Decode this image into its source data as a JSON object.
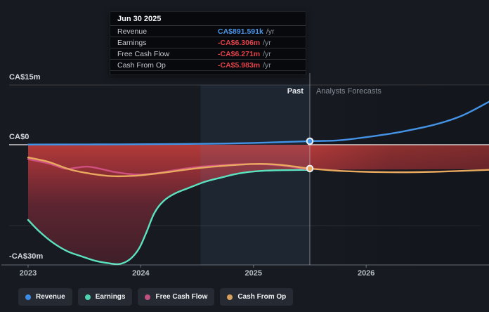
{
  "tooltip": {
    "date": "Jun 30 2025",
    "rows": [
      {
        "label": "Revenue",
        "value": "CA$891.591k",
        "suffix": "/yr",
        "value_color": "#4a96e8"
      },
      {
        "label": "Earnings",
        "value": "-CA$6.306m",
        "suffix": "/yr",
        "value_color": "#e24248"
      },
      {
        "label": "Free Cash Flow",
        "value": "-CA$6.271m",
        "suffix": "/yr",
        "value_color": "#e24248"
      },
      {
        "label": "Cash From Op",
        "value": "-CA$5.983m",
        "suffix": "/yr",
        "value_color": "#e24248"
      }
    ]
  },
  "chart": {
    "past_label": "Past",
    "forecast_label": "Analysts Forecasts"
  },
  "legend": [
    {
      "label": "Revenue",
      "color": "#3c8de8"
    },
    {
      "label": "Earnings",
      "color": "#4ed4b2"
    },
    {
      "label": "Free Cash Flow",
      "color": "#c0517e"
    },
    {
      "label": "Cash From Op",
      "color": "#d9a05c"
    }
  ],
  "colors": {
    "background": "#171a21",
    "grid_line": "rgba(255,255,255,0.16)",
    "faint_grid_line": "rgba(255,255,255,0.09)",
    "zero_line": "rgba(236,228,228,0.9)",
    "axis_line": "rgba(200,207,215,0.45)",
    "divider_line": "rgba(205,214,224,0.5)",
    "highlight_band": "rgba(96,144,205,0.10)",
    "forecast_shade": "rgba(10,12,17,0.30)",
    "marker_ring": "#edf0f3"
  },
  "chart_data": {
    "type": "line",
    "y_unit": "CA$ millions per year",
    "x_range": [
      2022.838,
      2027.09
    ],
    "y_range_m": [
      -30.2,
      16.95
    ],
    "divider_x": 2025.5,
    "divider_date": "Jun 30 2025",
    "highlight_band_x": [
      2024.53,
      2025.5
    ],
    "x_ticks": [
      2023,
      2024,
      2025,
      2026
    ],
    "y_gridlines": [
      {
        "value_m": 15,
        "label": "CA$15m",
        "line": true,
        "faint": false
      },
      {
        "value_m": 0,
        "label": "CA$0",
        "line": false,
        "faint": false
      },
      {
        "value_m": -20.3,
        "label": "",
        "line": true,
        "faint": true
      },
      {
        "value_m": -30,
        "label": "-CA$30m",
        "line": false,
        "faint": false
      }
    ],
    "area_gradient": [
      "#b23a38",
      "#8e2f35",
      "#5c2530",
      "#3f1f2a"
    ],
    "series": [
      {
        "name": "Revenue",
        "color": "#4493e6",
        "past": [
          [
            2023.0,
            0.05
          ],
          [
            2023.4,
            0.07
          ],
          [
            2023.8,
            0.1
          ],
          [
            2024.2,
            0.15
          ],
          [
            2024.6,
            0.25
          ],
          [
            2025.0,
            0.45
          ],
          [
            2025.5,
            0.892
          ]
        ],
        "forecast": [
          [
            2025.5,
            0.892
          ],
          [
            2025.75,
            1.1
          ],
          [
            2026.0,
            1.9
          ],
          [
            2026.3,
            3.2
          ],
          [
            2026.6,
            5.0
          ],
          [
            2026.85,
            7.3
          ],
          [
            2027.09,
            10.8
          ]
        ]
      },
      {
        "name": "Earnings",
        "color": "#5be3c0",
        "area_fill": true,
        "forecast_line_visible": false,
        "past": [
          [
            2023.0,
            -18.9
          ],
          [
            2023.1,
            -21.8
          ],
          [
            2023.22,
            -24.6
          ],
          [
            2023.35,
            -26.8
          ],
          [
            2023.48,
            -28.1
          ],
          [
            2023.6,
            -29.2
          ],
          [
            2023.72,
            -29.8
          ],
          [
            2023.8,
            -30.0
          ],
          [
            2023.87,
            -29.4
          ],
          [
            2023.93,
            -28.1
          ],
          [
            2023.99,
            -25.8
          ],
          [
            2024.05,
            -22.0
          ],
          [
            2024.12,
            -17.2
          ],
          [
            2024.2,
            -14.2
          ],
          [
            2024.3,
            -12.3
          ],
          [
            2024.43,
            -10.8
          ],
          [
            2024.57,
            -9.3
          ],
          [
            2024.72,
            -8.2
          ],
          [
            2024.87,
            -7.2
          ],
          [
            2025.05,
            -6.6
          ],
          [
            2025.25,
            -6.4
          ],
          [
            2025.5,
            -6.306
          ]
        ],
        "forecast": [
          [
            2025.5,
            -6.306
          ],
          [
            2025.9,
            -6.25
          ],
          [
            2026.5,
            -6.2
          ],
          [
            2027.09,
            -6.15
          ]
        ]
      },
      {
        "name": "Free Cash Flow",
        "color": "#cf4f80",
        "past": [
          [
            2023.0,
            -3.6
          ],
          [
            2023.18,
            -4.7
          ],
          [
            2023.33,
            -6.0
          ],
          [
            2023.42,
            -5.8
          ],
          [
            2023.52,
            -5.5
          ],
          [
            2023.62,
            -5.9
          ],
          [
            2023.78,
            -6.9
          ],
          [
            2023.98,
            -7.5
          ],
          [
            2024.15,
            -7.1
          ],
          [
            2024.32,
            -6.3
          ],
          [
            2024.5,
            -5.6
          ],
          [
            2024.68,
            -5.2
          ],
          [
            2024.88,
            -4.9
          ],
          [
            2025.08,
            -4.9
          ],
          [
            2025.28,
            -5.3
          ],
          [
            2025.5,
            -6.271
          ]
        ]
      },
      {
        "name": "Cash From Op",
        "color": "#e9a95e",
        "past": [
          [
            2023.0,
            -3.2
          ],
          [
            2023.18,
            -4.3
          ],
          [
            2023.37,
            -6.2
          ],
          [
            2023.56,
            -7.3
          ],
          [
            2023.75,
            -7.9
          ],
          [
            2023.94,
            -7.8
          ],
          [
            2024.12,
            -7.3
          ],
          [
            2024.31,
            -6.6
          ],
          [
            2024.5,
            -5.9
          ],
          [
            2024.69,
            -5.4
          ],
          [
            2024.88,
            -5.0
          ],
          [
            2025.06,
            -4.8
          ],
          [
            2025.22,
            -5.0
          ],
          [
            2025.37,
            -5.5
          ],
          [
            2025.5,
            -5.983
          ]
        ],
        "forecast": [
          [
            2025.5,
            -5.983
          ],
          [
            2025.8,
            -6.6
          ],
          [
            2026.2,
            -6.9
          ],
          [
            2026.6,
            -6.8
          ],
          [
            2027.09,
            -6.3
          ]
        ]
      }
    ],
    "markers": [
      {
        "series": "Revenue",
        "x": 2025.5,
        "value_m": 0.892,
        "color": "#3f96e8"
      },
      {
        "series": "Cash From Op",
        "x": 2025.5,
        "value_m": -5.983,
        "color": "#e9a95e"
      }
    ]
  }
}
